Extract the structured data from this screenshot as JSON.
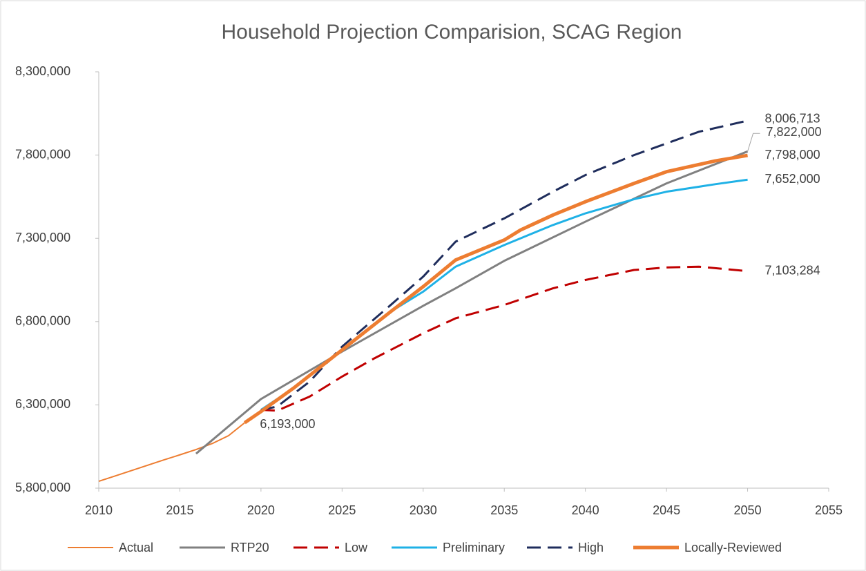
{
  "chart_data": {
    "type": "line",
    "title": "Household Projection Comparision, SCAG Region",
    "xlim": [
      2010,
      2055
    ],
    "xticks": [
      2010,
      2015,
      2020,
      2025,
      2030,
      2035,
      2040,
      2045,
      2050,
      2055
    ],
    "ylim": [
      5800000,
      8300000
    ],
    "yticks": [
      {
        "value": 5800000,
        "label": "5,800,000"
      },
      {
        "value": 6300000,
        "label": "6,300,000"
      },
      {
        "value": 6800000,
        "label": "6,800,000"
      },
      {
        "value": 7300000,
        "label": "7,300,000"
      },
      {
        "value": 7800000,
        "label": "7,800,000"
      },
      {
        "value": 8300000,
        "label": "8,300,000"
      }
    ],
    "grid": false,
    "legend": "bottom",
    "series": [
      {
        "name": "Actual",
        "color": "#ed7d31",
        "dashed": false,
        "x": [
          2010,
          2011,
          2012,
          2013,
          2014,
          2015,
          2016,
          2017,
          2018,
          2019
        ],
        "values": [
          5841000,
          5873000,
          5905000,
          5937000,
          5969000,
          6000000,
          6032000,
          6068000,
          6115000,
          6193000
        ]
      },
      {
        "name": "RTP20",
        "color": "#808080",
        "dashed": false,
        "x": [
          2016,
          2020,
          2025,
          2030,
          2032,
          2035,
          2040,
          2045,
          2050
        ],
        "values": [
          6007000,
          6335000,
          6620000,
          6895000,
          7000000,
          7165000,
          7400000,
          7630000,
          7822000
        ]
      },
      {
        "name": "Low",
        "color": "#c00000",
        "dashed": true,
        "x": [
          2020,
          2021,
          2023,
          2025,
          2027,
          2030,
          2032,
          2035,
          2038,
          2040,
          2043,
          2045,
          2047,
          2050
        ],
        "values": [
          6270000,
          6265000,
          6350000,
          6470000,
          6580000,
          6730000,
          6820000,
          6900000,
          7000000,
          7050000,
          7110000,
          7125000,
          7130000,
          7103284
        ]
      },
      {
        "name": "Preliminary",
        "color": "#1fb1e6",
        "dashed": false,
        "x": [
          2020,
          2022,
          2025,
          2028,
          2030,
          2032,
          2035,
          2038,
          2040,
          2043,
          2045,
          2048,
          2050
        ],
        "values": [
          6270000,
          6400000,
          6630000,
          6860000,
          6980000,
          7130000,
          7260000,
          7380000,
          7450000,
          7535000,
          7580000,
          7625000,
          7652000
        ]
      },
      {
        "name": "High",
        "color": "#1f2d5c",
        "dashed": true,
        "x": [
          2020,
          2021,
          2023,
          2025,
          2028,
          2030,
          2032,
          2035,
          2038,
          2040,
          2043,
          2045,
          2047,
          2050
        ],
        "values": [
          6270000,
          6290000,
          6440000,
          6650000,
          6900000,
          7070000,
          7280000,
          7420000,
          7580000,
          7680000,
          7800000,
          7870000,
          7940000,
          8006713
        ]
      },
      {
        "name": "Locally-Reviewed",
        "color": "#ed7d31",
        "dashed": false,
        "thick": true,
        "x": [
          2019,
          2020,
          2022,
          2025,
          2028,
          2030,
          2032,
          2035,
          2036,
          2038,
          2040,
          2043,
          2045,
          2048,
          2050
        ],
        "values": [
          6193000,
          6260000,
          6400000,
          6630000,
          6860000,
          7010000,
          7170000,
          7290000,
          7350000,
          7440000,
          7520000,
          7630000,
          7700000,
          7765000,
          7798000
        ]
      }
    ],
    "annotations": [
      {
        "text": "8,006,713",
        "x": 2050,
        "y": 8006713
      },
      {
        "text": "7,822,000",
        "x": 2050,
        "y": 7822000
      },
      {
        "text": "7,798,000",
        "x": 2050,
        "y": 7798000
      },
      {
        "text": "7,652,000",
        "x": 2050,
        "y": 7652000
      },
      {
        "text": "7,103,284",
        "x": 2050,
        "y": 7103284
      },
      {
        "text": "6,193,000",
        "x": 2019,
        "y": 6193000
      }
    ]
  }
}
